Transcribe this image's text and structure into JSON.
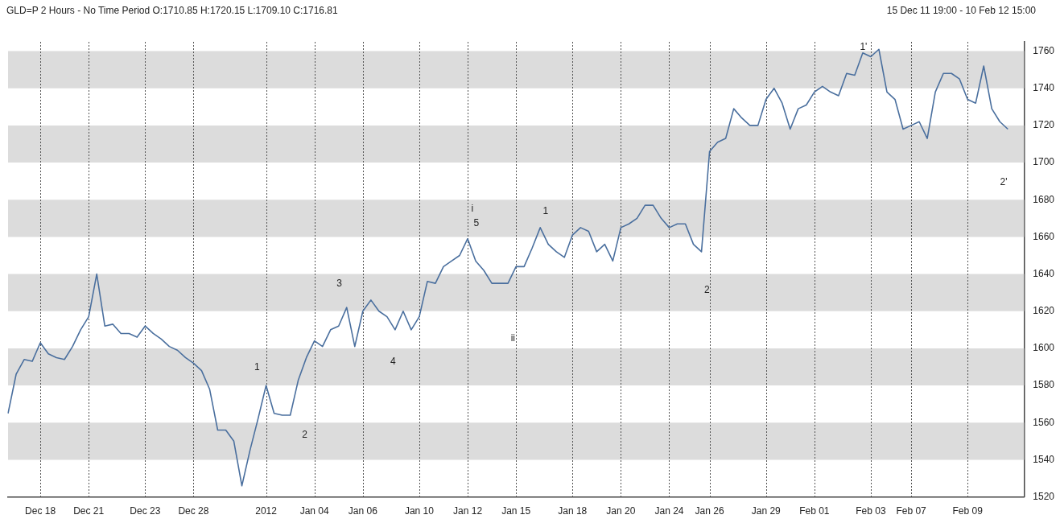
{
  "chart_data": {
    "type": "line",
    "title": "GLD=P 2 Hours -  No Time Period O:1710.85 H:1720.15 L:1709.10 C:1716.81",
    "subtitle": "15 Dec 11 19:00  -  10 Feb 12 15:00",
    "categories": [
      null,
      null,
      null,
      null,
      "Dec 18",
      null,
      null,
      null,
      null,
      null,
      "Dec 21",
      null,
      null,
      null,
      null,
      null,
      null,
      "Dec 23",
      null,
      null,
      null,
      null,
      null,
      "Dec 28",
      null,
      null,
      null,
      null,
      null,
      null,
      null,
      null,
      "2012",
      null,
      null,
      null,
      null,
      null,
      "Jan 04",
      null,
      null,
      null,
      null,
      null,
      "Jan 06",
      null,
      null,
      null,
      null,
      null,
      null,
      "Jan 10",
      null,
      null,
      null,
      null,
      null,
      "Jan 12",
      null,
      null,
      null,
      null,
      null,
      "Jan 15",
      null,
      null,
      null,
      null,
      null,
      null,
      "Jan 18",
      null,
      null,
      null,
      null,
      null,
      "Jan 20",
      null,
      null,
      null,
      null,
      null,
      "Jan 24",
      null,
      null,
      null,
      null,
      "Jan 26",
      null,
      null,
      null,
      null,
      null,
      null,
      "Jan 29",
      null,
      null,
      null,
      null,
      null,
      "Feb 01",
      null,
      null,
      null,
      null,
      null,
      null,
      "Feb 03",
      null,
      null,
      null,
      null,
      "Feb 07",
      null,
      null,
      null,
      null,
      null,
      null,
      "Feb 09",
      null,
      null,
      null,
      null,
      null,
      null,
      null
    ],
    "series": [
      {
        "color": "#4a6f9e",
        "values": [
          1565,
          1586,
          1594,
          1593,
          1603,
          1597,
          1595,
          1594,
          1601,
          1610,
          1617,
          1640,
          1612,
          1613,
          1608,
          1608,
          1606,
          1612,
          1608,
          1605,
          1601,
          1599,
          1595,
          1592,
          1588,
          1578,
          1556,
          1556,
          1550,
          1526,
          1545,
          1562,
          1580,
          1565,
          1564,
          1564,
          1583,
          1595,
          1604,
          1601,
          1610,
          1612,
          1622,
          1601,
          1620,
          1626,
          1620,
          1617,
          1610,
          1620,
          1610,
          1617,
          1636,
          1635,
          1644,
          1647,
          1650,
          1659,
          1647,
          1642,
          1635,
          1635,
          1635,
          1644,
          1644,
          1654,
          1665,
          1656,
          1652,
          1649,
          1661,
          1665,
          1663,
          1652,
          1656,
          1647,
          1665,
          1667,
          1670,
          1677,
          1677,
          1670,
          1665,
          1667,
          1667,
          1656,
          1652,
          1706,
          1711,
          1713,
          1729,
          1724,
          1720,
          1720,
          1734,
          1740,
          1732,
          1718,
          1729,
          1731,
          1738,
          1741,
          1738,
          1736,
          1748,
          1747,
          1759,
          1757,
          1761,
          1738,
          1734,
          1718,
          1720,
          1722,
          1713,
          1738,
          1748,
          1748,
          1745,
          1734,
          1732,
          1752,
          1729,
          1722,
          1718,
          null,
          null
        ]
      }
    ],
    "ylim": [
      1520,
      1765
    ],
    "yticks": [
      1520,
      1540,
      1560,
      1580,
      1600,
      1620,
      1640,
      1660,
      1680,
      1700,
      1720,
      1740,
      1760
    ],
    "grid": "x",
    "line_style": "solid",
    "legend": false,
    "bands": [
      {
        "axis": "y",
        "from": 1540,
        "to": 1560,
        "color": "#dcdcdc"
      },
      {
        "axis": "y",
        "from": 1580,
        "to": 1600,
        "color": "#dcdcdc"
      },
      {
        "axis": "y",
        "from": 1620,
        "to": 1640,
        "color": "#dcdcdc"
      },
      {
        "axis": "y",
        "from": 1660,
        "to": 1680,
        "color": "#dcdcdc"
      },
      {
        "axis": "y",
        "from": 1700,
        "to": 1720,
        "color": "#dcdcdc"
      },
      {
        "axis": "y",
        "from": 1740,
        "to": 1760,
        "color": "#dcdcdc"
      }
    ],
    "annotations": [
      "1",
      "2",
      "3",
      "4",
      "i",
      "5",
      "ii",
      "1",
      "2",
      "1'",
      "2'"
    ]
  }
}
